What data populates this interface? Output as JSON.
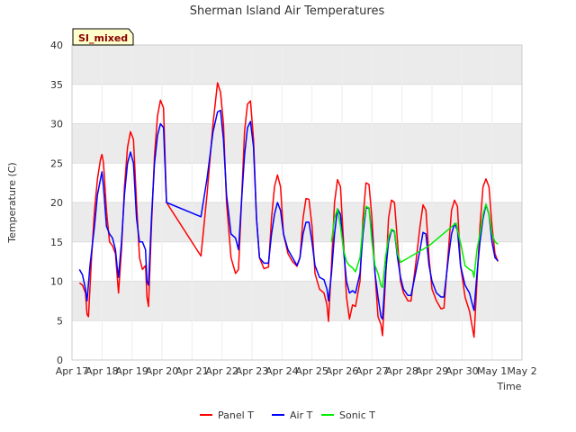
{
  "chart_data": {
    "type": "line",
    "title": "Sherman Island Air Temperatures",
    "xlabel": "Time",
    "ylabel": "Temperature (C)",
    "badge": "SI_mixed",
    "ylim": [
      0,
      40
    ],
    "yticks": [
      0,
      5,
      10,
      15,
      20,
      25,
      30,
      35,
      40
    ],
    "xlim": [
      0,
      15
    ],
    "xtick_labels": [
      "Apr 17",
      "Apr 18",
      "Apr 19",
      "Apr 20",
      "Apr 21",
      "Apr 22",
      "Apr 23",
      "Apr 24",
      "Apr 25",
      "Apr 26",
      "Apr 27",
      "Apr 28",
      "Apr 29",
      "Apr 30",
      "May 1",
      "May 2"
    ],
    "grid": true,
    "legend_position": "bottom",
    "colors": {
      "panel": "#ff0000",
      "air": "#0000ff",
      "sonic": "#00ee00",
      "band": "#ebebeb"
    },
    "series": [
      {
        "name": "Panel T",
        "color": "#ff0000",
        "points": [
          [
            0.25,
            9.8
          ],
          [
            0.35,
            9.5
          ],
          [
            0.45,
            8.5
          ],
          [
            0.5,
            5.8
          ],
          [
            0.55,
            5.5
          ],
          [
            0.65,
            13
          ],
          [
            0.75,
            19
          ],
          [
            0.85,
            23
          ],
          [
            0.95,
            25.5
          ],
          [
            1.0,
            26.1
          ],
          [
            1.05,
            25
          ],
          [
            1.15,
            19
          ],
          [
            1.25,
            15
          ],
          [
            1.35,
            14.5
          ],
          [
            1.45,
            13.5
          ],
          [
            1.5,
            11
          ],
          [
            1.55,
            8.5
          ],
          [
            1.65,
            14
          ],
          [
            1.75,
            22
          ],
          [
            1.85,
            27
          ],
          [
            1.95,
            29
          ],
          [
            2.05,
            28
          ],
          [
            2.15,
            20
          ],
          [
            2.25,
            13
          ],
          [
            2.35,
            11.5
          ],
          [
            2.45,
            12
          ],
          [
            2.5,
            8
          ],
          [
            2.55,
            6.8
          ],
          [
            2.65,
            17
          ],
          [
            2.75,
            26
          ],
          [
            2.85,
            31
          ],
          [
            2.95,
            33
          ],
          [
            3.05,
            32
          ],
          [
            3.15,
            20
          ],
          [
            4.3,
            13.2
          ],
          [
            4.5,
            21
          ],
          [
            4.7,
            30
          ],
          [
            4.85,
            35.2
          ],
          [
            4.95,
            34
          ],
          [
            5.05,
            30
          ],
          [
            5.15,
            20
          ],
          [
            5.3,
            13
          ],
          [
            5.45,
            11
          ],
          [
            5.55,
            11.5
          ],
          [
            5.65,
            20
          ],
          [
            5.75,
            29
          ],
          [
            5.85,
            32.5
          ],
          [
            5.95,
            32.9
          ],
          [
            6.05,
            28
          ],
          [
            6.15,
            18
          ],
          [
            6.25,
            13
          ],
          [
            6.4,
            11.6
          ],
          [
            6.55,
            11.8
          ],
          [
            6.65,
            18
          ],
          [
            6.75,
            22
          ],
          [
            6.85,
            23.5
          ],
          [
            6.95,
            22
          ],
          [
            7.05,
            16
          ],
          [
            7.2,
            13.5
          ],
          [
            7.35,
            12.5
          ],
          [
            7.5,
            11.9
          ],
          [
            7.6,
            13
          ],
          [
            7.7,
            18
          ],
          [
            7.8,
            20.5
          ],
          [
            7.9,
            20.4
          ],
          [
            8.0,
            17
          ],
          [
            8.1,
            11
          ],
          [
            8.25,
            9
          ],
          [
            8.4,
            8.5
          ],
          [
            8.5,
            7
          ],
          [
            8.55,
            4.9
          ],
          [
            8.65,
            12
          ],
          [
            8.75,
            20
          ],
          [
            8.85,
            22.9
          ],
          [
            8.95,
            22
          ],
          [
            9.05,
            15
          ],
          [
            9.15,
            8
          ],
          [
            9.25,
            5.2
          ],
          [
            9.35,
            7
          ],
          [
            9.45,
            6.8
          ],
          [
            9.6,
            10
          ],
          [
            9.7,
            18
          ],
          [
            9.8,
            22.5
          ],
          [
            9.9,
            22.3
          ],
          [
            10.0,
            18
          ],
          [
            10.1,
            11
          ],
          [
            10.2,
            5.5
          ],
          [
            10.3,
            4.5
          ],
          [
            10.35,
            3.1
          ],
          [
            10.45,
            10
          ],
          [
            10.55,
            18
          ],
          [
            10.65,
            20.3
          ],
          [
            10.75,
            20
          ],
          [
            10.85,
            15
          ],
          [
            10.95,
            10
          ],
          [
            11.05,
            8.5
          ],
          [
            11.2,
            7.5
          ],
          [
            11.3,
            7.5
          ],
          [
            11.45,
            12
          ],
          [
            11.6,
            17
          ],
          [
            11.7,
            19.7
          ],
          [
            11.8,
            19
          ],
          [
            11.9,
            13
          ],
          [
            12.0,
            9
          ],
          [
            12.15,
            7.5
          ],
          [
            12.3,
            6.5
          ],
          [
            12.4,
            6.6
          ],
          [
            12.55,
            14
          ],
          [
            12.65,
            19
          ],
          [
            12.75,
            20.3
          ],
          [
            12.85,
            19.5
          ],
          [
            12.95,
            12
          ],
          [
            13.1,
            8
          ],
          [
            13.25,
            6.2
          ],
          [
            13.35,
            4
          ],
          [
            13.4,
            2.9
          ],
          [
            13.5,
            10
          ],
          [
            13.6,
            17
          ],
          [
            13.7,
            22
          ],
          [
            13.8,
            23
          ],
          [
            13.9,
            22
          ],
          [
            14.0,
            17
          ],
          [
            14.1,
            13.5
          ],
          [
            14.2,
            12.5
          ]
        ]
      },
      {
        "name": "Air T",
        "color": "#0000ff",
        "points": [
          [
            0.25,
            11.5
          ],
          [
            0.35,
            10.8
          ],
          [
            0.45,
            9
          ],
          [
            0.5,
            7.5
          ],
          [
            0.6,
            12
          ],
          [
            0.75,
            17
          ],
          [
            0.85,
            21
          ],
          [
            0.95,
            23
          ],
          [
            1.0,
            23.9
          ],
          [
            1.05,
            22
          ],
          [
            1.15,
            17
          ],
          [
            1.25,
            16
          ],
          [
            1.35,
            15.5
          ],
          [
            1.45,
            14
          ],
          [
            1.5,
            12
          ],
          [
            1.55,
            10.5
          ],
          [
            1.65,
            15
          ],
          [
            1.75,
            21
          ],
          [
            1.85,
            25
          ],
          [
            1.95,
            26.4
          ],
          [
            2.05,
            25
          ],
          [
            2.15,
            18
          ],
          [
            2.25,
            15
          ],
          [
            2.35,
            15
          ],
          [
            2.45,
            14
          ],
          [
            2.5,
            10
          ],
          [
            2.55,
            9.5
          ],
          [
            2.65,
            18
          ],
          [
            2.75,
            25
          ],
          [
            2.85,
            28.5
          ],
          [
            2.95,
            30
          ],
          [
            3.05,
            29.5
          ],
          [
            3.15,
            20
          ],
          [
            4.3,
            18.2
          ],
          [
            4.5,
            23
          ],
          [
            4.7,
            29
          ],
          [
            4.85,
            31.5
          ],
          [
            4.95,
            31.7
          ],
          [
            5.05,
            28
          ],
          [
            5.15,
            21
          ],
          [
            5.3,
            16
          ],
          [
            5.45,
            15.5
          ],
          [
            5.55,
            14
          ],
          [
            5.65,
            20
          ],
          [
            5.75,
            26
          ],
          [
            5.85,
            29.5
          ],
          [
            5.95,
            30.3
          ],
          [
            6.05,
            27
          ],
          [
            6.15,
            18
          ],
          [
            6.25,
            13
          ],
          [
            6.4,
            12.3
          ],
          [
            6.55,
            12.3
          ],
          [
            6.65,
            16
          ],
          [
            6.75,
            18.5
          ],
          [
            6.85,
            20
          ],
          [
            6.95,
            19
          ],
          [
            7.05,
            16
          ],
          [
            7.2,
            14
          ],
          [
            7.35,
            13
          ],
          [
            7.5,
            12
          ],
          [
            7.6,
            13
          ],
          [
            7.7,
            16
          ],
          [
            7.8,
            17.5
          ],
          [
            7.9,
            17.5
          ],
          [
            8.0,
            15
          ],
          [
            8.1,
            12
          ],
          [
            8.25,
            10.5
          ],
          [
            8.4,
            10.2
          ],
          [
            8.5,
            9
          ],
          [
            8.55,
            7.5
          ],
          [
            8.65,
            11
          ],
          [
            8.75,
            16
          ],
          [
            8.85,
            19.2
          ],
          [
            8.95,
            18.5
          ],
          [
            9.05,
            14
          ],
          [
            9.15,
            10
          ],
          [
            9.25,
            8.5
          ],
          [
            9.35,
            8.8
          ],
          [
            9.45,
            8.5
          ],
          [
            9.6,
            11
          ],
          [
            9.7,
            16
          ],
          [
            9.8,
            19.3
          ],
          [
            9.9,
            19.3
          ],
          [
            10.0,
            16
          ],
          [
            10.1,
            11
          ],
          [
            10.2,
            8
          ],
          [
            10.3,
            5.5
          ],
          [
            10.35,
            5.2
          ],
          [
            10.45,
            11
          ],
          [
            10.55,
            15
          ],
          [
            10.65,
            16.5
          ],
          [
            10.75,
            16.3
          ],
          [
            10.85,
            13
          ],
          [
            10.95,
            10.5
          ],
          [
            11.05,
            9
          ],
          [
            11.2,
            8.2
          ],
          [
            11.3,
            8.2
          ],
          [
            11.45,
            11
          ],
          [
            11.6,
            14
          ],
          [
            11.7,
            16.2
          ],
          [
            11.8,
            16
          ],
          [
            11.9,
            12
          ],
          [
            12.0,
            10
          ],
          [
            12.15,
            8.5
          ],
          [
            12.3,
            8
          ],
          [
            12.4,
            8
          ],
          [
            12.55,
            13
          ],
          [
            12.65,
            16
          ],
          [
            12.75,
            17.3
          ],
          [
            12.85,
            16.5
          ],
          [
            12.95,
            12
          ],
          [
            13.1,
            9.5
          ],
          [
            13.25,
            8.5
          ],
          [
            13.35,
            7
          ],
          [
            13.4,
            6.3
          ],
          [
            13.5,
            11
          ],
          [
            13.6,
            15
          ],
          [
            13.7,
            18
          ],
          [
            13.8,
            19.7
          ],
          [
            13.9,
            18.5
          ],
          [
            14.0,
            15
          ],
          [
            14.1,
            13
          ],
          [
            14.2,
            12.6
          ]
        ]
      },
      {
        "name": "Sonic T",
        "color": "#00ee00",
        "points": [
          [
            8.65,
            15
          ],
          [
            8.75,
            18
          ],
          [
            8.85,
            19.2
          ],
          [
            8.95,
            17
          ],
          [
            9.05,
            14
          ],
          [
            9.15,
            12.5
          ],
          [
            9.25,
            12
          ],
          [
            9.35,
            11.7
          ],
          [
            9.45,
            11.2
          ],
          [
            9.6,
            13
          ],
          [
            9.7,
            17
          ],
          [
            9.8,
            19.5
          ],
          [
            9.9,
            19.3
          ],
          [
            10.0,
            15
          ],
          [
            10.1,
            12
          ],
          [
            10.2,
            11
          ],
          [
            10.3,
            9.5
          ],
          [
            10.35,
            9.2
          ],
          [
            10.45,
            13
          ],
          [
            10.55,
            15.5
          ],
          [
            10.65,
            16.6
          ],
          [
            10.75,
            16.4
          ],
          [
            10.85,
            13.5
          ],
          [
            10.95,
            12.4
          ],
          [
            11.9,
            14.5
          ],
          [
            12.8,
            17.4
          ],
          [
            13.0,
            14
          ],
          [
            13.1,
            12
          ],
          [
            13.25,
            11.5
          ],
          [
            13.35,
            11.3
          ],
          [
            13.4,
            10.5
          ],
          [
            13.5,
            14
          ],
          [
            13.6,
            16
          ],
          [
            13.7,
            18.5
          ],
          [
            13.8,
            19.8
          ],
          [
            13.9,
            18.5
          ],
          [
            14.0,
            16
          ],
          [
            14.1,
            15
          ],
          [
            14.2,
            14.7
          ]
        ]
      }
    ]
  }
}
